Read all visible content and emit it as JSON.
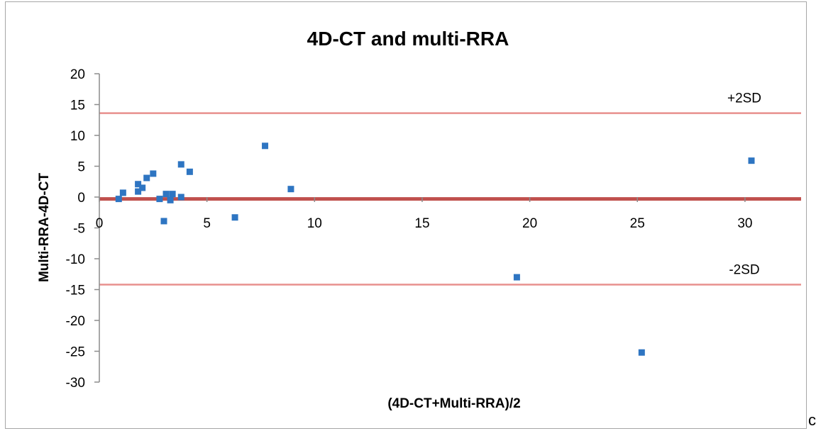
{
  "chart_data": {
    "type": "scatter",
    "title": "4D-CT and multi-RRA",
    "xlabel": "(4D-CT+Multi-RRA)/2",
    "ylabel": "Multi-RRA-4D-CT",
    "xlim": [
      0,
      32
    ],
    "ylim": [
      -30,
      20
    ],
    "x_ticks": [
      0,
      5,
      10,
      15,
      20,
      25,
      30
    ],
    "y_ticks": [
      20,
      15,
      10,
      5,
      0,
      -5,
      -10,
      -15,
      -20,
      -25,
      -30
    ],
    "grid": false,
    "legend": "none",
    "series": [
      {
        "color": "#2e75c2",
        "points": [
          {
            "x": 0.9,
            "y": -0.3
          },
          {
            "x": 1.1,
            "y": 0.7
          },
          {
            "x": 1.8,
            "y": 2.1
          },
          {
            "x": 1.8,
            "y": 0.9
          },
          {
            "x": 2.0,
            "y": 1.5
          },
          {
            "x": 2.2,
            "y": 3.1
          },
          {
            "x": 2.5,
            "y": 3.8
          },
          {
            "x": 2.8,
            "y": -0.3
          },
          {
            "x": 3.0,
            "y": -3.9
          },
          {
            "x": 3.1,
            "y": 0.5
          },
          {
            "x": 3.3,
            "y": -0.5
          },
          {
            "x": 3.4,
            "y": 0.5
          },
          {
            "x": 3.8,
            "y": 5.3
          },
          {
            "x": 3.8,
            "y": 0.0
          },
          {
            "x": 4.2,
            "y": 4.1
          },
          {
            "x": 6.3,
            "y": -3.3
          },
          {
            "x": 7.7,
            "y": 8.3
          },
          {
            "x": 8.9,
            "y": 1.3
          },
          {
            "x": 19.4,
            "y": -13.0
          },
          {
            "x": 25.2,
            "y": -25.2
          },
          {
            "x": 30.3,
            "y": 5.9
          }
        ]
      }
    ],
    "reference_lines": [
      {
        "y": 13.6,
        "label": "+2SD",
        "color": "#e8908e"
      },
      {
        "y": -0.3,
        "label": "",
        "color": "#c0504d"
      },
      {
        "y": -14.2,
        "label": "-2SD",
        "color": "#e8908e"
      }
    ]
  },
  "corner_mark": "c"
}
